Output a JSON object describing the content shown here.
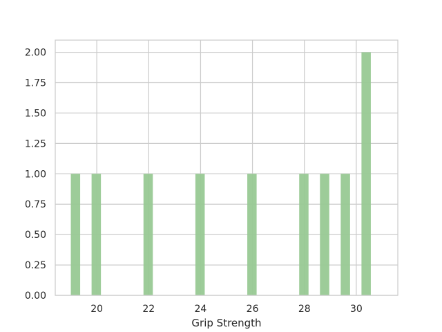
{
  "chart_data": {
    "type": "bar",
    "title": "",
    "xlabel": "Grip Strength",
    "ylabel": "",
    "xlim": [
      18.4,
      31.6
    ],
    "ylim": [
      0,
      2.1
    ],
    "grid": true,
    "bar_color": "#98c994",
    "grid_color": "#cccccc",
    "bin_width": 0.36,
    "bars": [
      {
        "x": 19.0,
        "count": 1
      },
      {
        "x": 19.8,
        "count": 1
      },
      {
        "x": 21.8,
        "count": 1
      },
      {
        "x": 23.8,
        "count": 1
      },
      {
        "x": 25.8,
        "count": 1
      },
      {
        "x": 27.8,
        "count": 1
      },
      {
        "x": 28.6,
        "count": 1
      },
      {
        "x": 29.4,
        "count": 1
      },
      {
        "x": 30.2,
        "count": 2
      }
    ],
    "x_ticks": [
      {
        "value": 20,
        "label": "20"
      },
      {
        "value": 22,
        "label": "22"
      },
      {
        "value": 24,
        "label": "24"
      },
      {
        "value": 26,
        "label": "26"
      },
      {
        "value": 28,
        "label": "28"
      },
      {
        "value": 30,
        "label": "30"
      }
    ],
    "y_ticks": [
      {
        "value": 0,
        "label": "0.00"
      },
      {
        "value": 0.25,
        "label": "0.25"
      },
      {
        "value": 0.5,
        "label": "0.50"
      },
      {
        "value": 0.75,
        "label": "0.75"
      },
      {
        "value": 1.0,
        "label": "1.00"
      },
      {
        "value": 1.25,
        "label": "1.25"
      },
      {
        "value": 1.5,
        "label": "1.50"
      },
      {
        "value": 1.75,
        "label": "1.75"
      },
      {
        "value": 2.0,
        "label": "2.00"
      }
    ]
  }
}
